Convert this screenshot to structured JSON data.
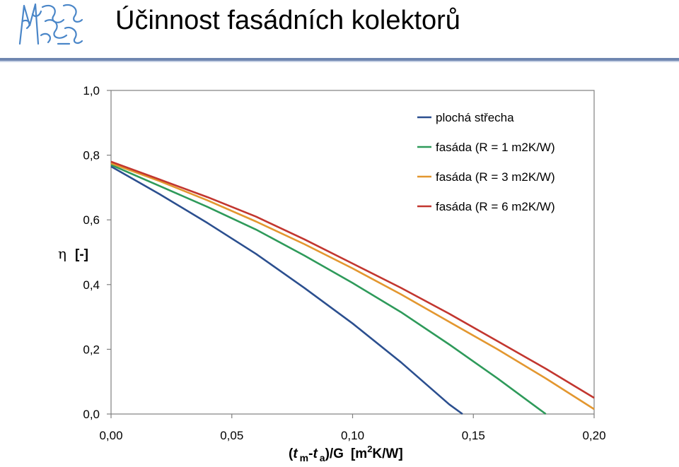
{
  "header": {
    "title": "Účinnost fasádních kolektorů"
  },
  "colors": {
    "rule": "#6f86b0",
    "flat_roof": "#2b4f8f",
    "facade_r1": "#2e9a5a",
    "facade_r3": "#e3972f",
    "facade_r6": "#c2362f"
  },
  "chart_data": {
    "type": "line",
    "title": "",
    "xlabel": {
      "open": "(",
      "t1": "t",
      "sub1": "m",
      "dash": "-",
      "t2": "t",
      "sub2": "a",
      "close_g": ")/G",
      "units_a": "[m",
      "sup": "2",
      "units_b": "K/W]"
    },
    "ylabel": {
      "symbol": "η",
      "unit": "[-]"
    },
    "xlim": [
      0,
      0.2
    ],
    "ylim": [
      0,
      1.0
    ],
    "xticks": [
      "0,00",
      "0,05",
      "0,10",
      "0,15",
      "0,20"
    ],
    "yticks": [
      "0,0",
      "0,2",
      "0,4",
      "0,6",
      "0,8",
      "1,0"
    ],
    "grid": false,
    "legend_position": "top-right",
    "series": [
      {
        "name": "plochá střecha",
        "color": "#2b4f8f",
        "x": [
          0,
          0.02,
          0.04,
          0.06,
          0.08,
          0.1,
          0.12,
          0.14,
          0.1455
        ],
        "y": [
          0.765,
          0.68,
          0.59,
          0.495,
          0.39,
          0.28,
          0.16,
          0.03,
          0.0
        ]
      },
      {
        "name": "fasáda (R = 1 m2K/W)",
        "color": "#2e9a5a",
        "x": [
          0,
          0.02,
          0.04,
          0.06,
          0.08,
          0.1,
          0.12,
          0.14,
          0.16,
          0.18
        ],
        "y": [
          0.77,
          0.705,
          0.64,
          0.57,
          0.49,
          0.405,
          0.315,
          0.215,
          0.11,
          0.0
        ]
      },
      {
        "name": "fasáda (R = 3 m2K/W)",
        "color": "#e3972f",
        "x": [
          0,
          0.02,
          0.04,
          0.06,
          0.08,
          0.1,
          0.12,
          0.14,
          0.16,
          0.18,
          0.2
        ],
        "y": [
          0.775,
          0.72,
          0.66,
          0.595,
          0.525,
          0.45,
          0.37,
          0.285,
          0.2,
          0.11,
          0.015
        ]
      },
      {
        "name": "fasáda (R = 6 m2K/W)",
        "color": "#c2362f",
        "x": [
          0,
          0.02,
          0.04,
          0.06,
          0.08,
          0.1,
          0.12,
          0.14,
          0.16,
          0.18,
          0.2
        ],
        "y": [
          0.78,
          0.725,
          0.67,
          0.61,
          0.54,
          0.465,
          0.39,
          0.31,
          0.225,
          0.14,
          0.05
        ]
      }
    ]
  }
}
